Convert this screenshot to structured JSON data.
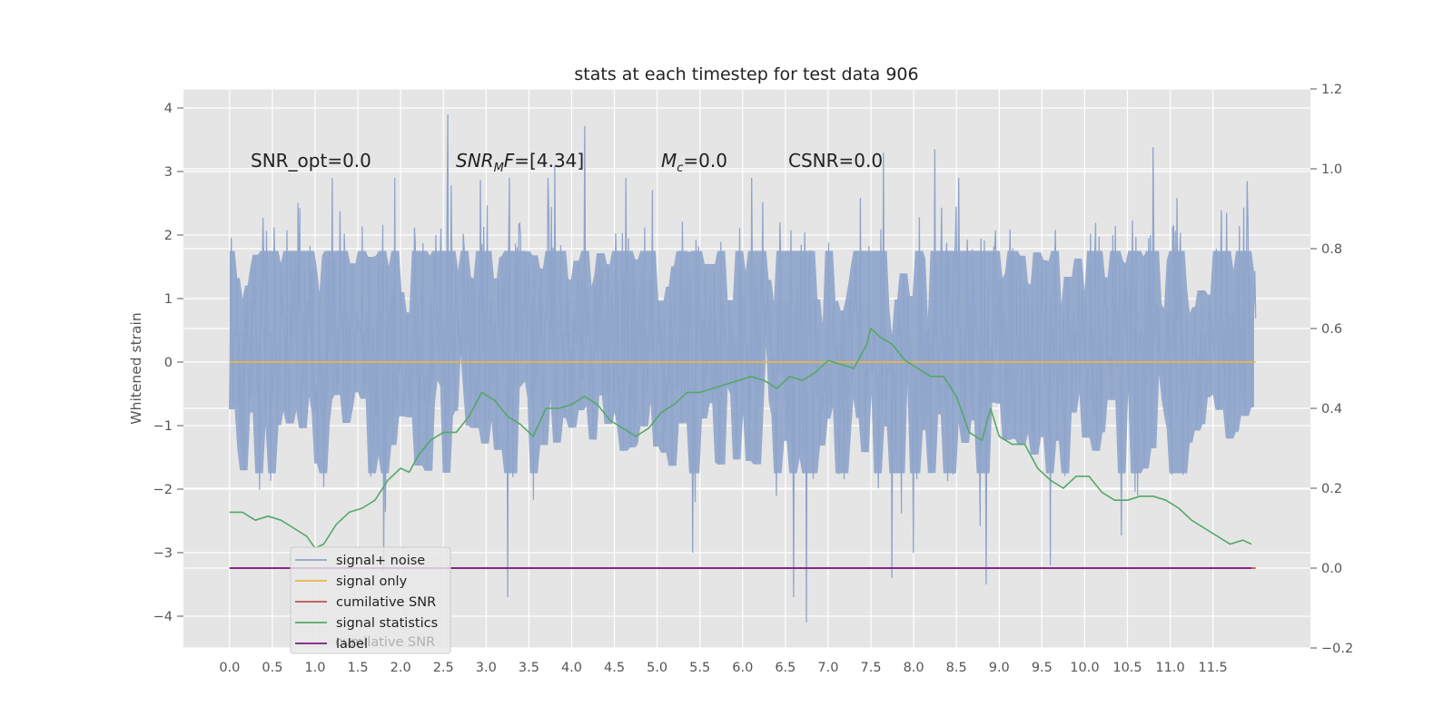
{
  "chart_data": {
    "type": "line",
    "title": "stats at each timestep for test data 906",
    "xlabel": "",
    "ylabel": "Whitened strain",
    "y2label": "",
    "xlim": [
      -0.54,
      12.64
    ],
    "ylim": [
      -4.5,
      4.3
    ],
    "y2lim": [
      -0.2,
      1.2
    ],
    "xticks": [
      "0.0",
      "0.5",
      "1.0",
      "1.5",
      "2.0",
      "2.5",
      "3.0",
      "3.5",
      "4.0",
      "4.5",
      "5.0",
      "5.5",
      "6.0",
      "6.5",
      "7.0",
      "7.5",
      "8.0",
      "8.5",
      "9.0",
      "9.5",
      "10.0",
      "10.5",
      "11.0",
      "11.5"
    ],
    "yticks": [
      "4",
      "3",
      "2",
      "1",
      "0",
      "−1",
      "−2",
      "−3",
      "−4"
    ],
    "y2ticks": [
      "1.2",
      "1.0",
      "0.8",
      "0.6",
      "0.4",
      "0.2",
      "0.0",
      "−0.2"
    ],
    "grid": true,
    "legend_position": "bottom-left",
    "annotations": {
      "snr_opt": "SNR_opt=0.0",
      "snr_mf_main": "SNR",
      "snr_mf_sub": "M",
      "snr_mf_tail": "F=[4.34]",
      "mc_main": "M",
      "mc_sub": "c",
      "mc_tail": "=0.0",
      "csnr": "CSNR=0.0"
    },
    "series": [
      {
        "name": "signal+ noise",
        "color": "#8fa5cb",
        "axis": "left",
        "envelope": true,
        "seed": 906,
        "n": 1200,
        "x_range": [
          0.0,
          12.0
        ],
        "peaks_upper": [
          [
            2.55,
            3.9
          ],
          [
            4.15,
            3.72
          ],
          [
            7.65,
            3.3
          ],
          [
            8.25,
            3.35
          ],
          [
            10.8,
            3.38
          ],
          [
            1.2,
            2.9
          ],
          [
            3.8,
            3.1
          ]
        ],
        "peaks_lower": [
          [
            3.25,
            -3.7
          ],
          [
            6.75,
            -4.1
          ],
          [
            6.6,
            -3.7
          ],
          [
            8.85,
            -3.5
          ],
          [
            7.75,
            -3.4
          ],
          [
            1.8,
            -3.3
          ],
          [
            9.6,
            -3.2
          ]
        ]
      },
      {
        "name": "signal only",
        "color": "#e8b54a",
        "axis": "left",
        "x": [
          0.0,
          12.0
        ],
        "y": [
          0.0,
          0.0
        ]
      },
      {
        "name": "cumilative SNR",
        "color": "#c44e52",
        "axis": "right",
        "x": [
          0.0,
          12.0
        ],
        "y": [
          0.0,
          0.0
        ]
      },
      {
        "name": "signal statistics",
        "color": "#55a868",
        "axis": "right",
        "x": [
          0.0,
          0.15,
          0.3,
          0.45,
          0.6,
          0.75,
          0.9,
          1.0,
          1.1,
          1.25,
          1.4,
          1.55,
          1.7,
          1.85,
          2.0,
          2.1,
          2.2,
          2.35,
          2.5,
          2.65,
          2.8,
          2.95,
          3.1,
          3.25,
          3.4,
          3.55,
          3.7,
          3.85,
          4.0,
          4.15,
          4.3,
          4.45,
          4.6,
          4.75,
          4.9,
          5.05,
          5.2,
          5.35,
          5.5,
          5.65,
          5.8,
          5.95,
          6.1,
          6.25,
          6.4,
          6.55,
          6.7,
          6.85,
          7.0,
          7.15,
          7.3,
          7.45,
          7.5,
          7.6,
          7.75,
          7.9,
          8.05,
          8.2,
          8.35,
          8.5,
          8.65,
          8.8,
          8.9,
          9.0,
          9.15,
          9.3,
          9.45,
          9.6,
          9.75,
          9.9,
          10.05,
          10.2,
          10.35,
          10.5,
          10.65,
          10.8,
          10.95,
          11.1,
          11.25,
          11.4,
          11.55,
          11.7,
          11.85,
          11.95
        ],
        "y": [
          0.14,
          0.14,
          0.12,
          0.13,
          0.12,
          0.1,
          0.08,
          0.05,
          0.06,
          0.11,
          0.14,
          0.15,
          0.17,
          0.22,
          0.25,
          0.24,
          0.28,
          0.32,
          0.34,
          0.34,
          0.38,
          0.44,
          0.42,
          0.38,
          0.36,
          0.33,
          0.4,
          0.4,
          0.41,
          0.43,
          0.41,
          0.37,
          0.35,
          0.33,
          0.35,
          0.39,
          0.41,
          0.44,
          0.44,
          0.45,
          0.46,
          0.47,
          0.48,
          0.47,
          0.45,
          0.48,
          0.47,
          0.49,
          0.52,
          0.51,
          0.5,
          0.56,
          0.6,
          0.58,
          0.56,
          0.52,
          0.5,
          0.48,
          0.48,
          0.43,
          0.34,
          0.32,
          0.4,
          0.33,
          0.31,
          0.31,
          0.25,
          0.22,
          0.2,
          0.23,
          0.23,
          0.19,
          0.17,
          0.17,
          0.18,
          0.18,
          0.17,
          0.15,
          0.12,
          0.1,
          0.08,
          0.06,
          0.07,
          0.06
        ]
      },
      {
        "name": "label",
        "color": "#7b1a86",
        "axis": "right",
        "x": [
          0.0,
          11.95
        ],
        "y": [
          0.0,
          0.0
        ]
      }
    ],
    "legend_ghost_text": "cumilative SNR"
  }
}
